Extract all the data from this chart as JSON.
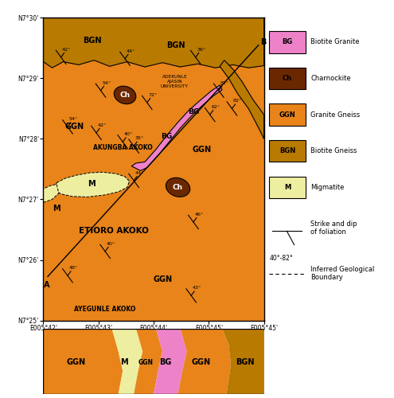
{
  "colors": {
    "GGN": "#E8841A",
    "BGN": "#B87A00",
    "BG": "#EE82C8",
    "Ch": "#6B2800",
    "M": "#EEEEA0",
    "background": "#E8841A"
  },
  "legend": [
    {
      "code": "BG",
      "label": "Biotite Granite",
      "color": "#EE82C8"
    },
    {
      "code": "Ch",
      "label": "Charnockite",
      "color": "#6B2800"
    },
    {
      "code": "GGN",
      "label": "Granite Gneiss",
      "color": "#E8841A"
    },
    {
      "code": "BGN",
      "label": "Biotite Gneiss",
      "color": "#B87A00"
    },
    {
      "code": "M",
      "label": "Migmatite",
      "color": "#EEEEA0"
    }
  ],
  "x_ticks": [
    "E005°42'",
    "E005°43'",
    "E005°44'",
    "E005°45'",
    "E005°45'"
  ],
  "y_ticks": [
    "N7°25'",
    "N7°26'",
    "N7°27'",
    "N7°28'",
    "N7°29'",
    "N7°30'"
  ]
}
